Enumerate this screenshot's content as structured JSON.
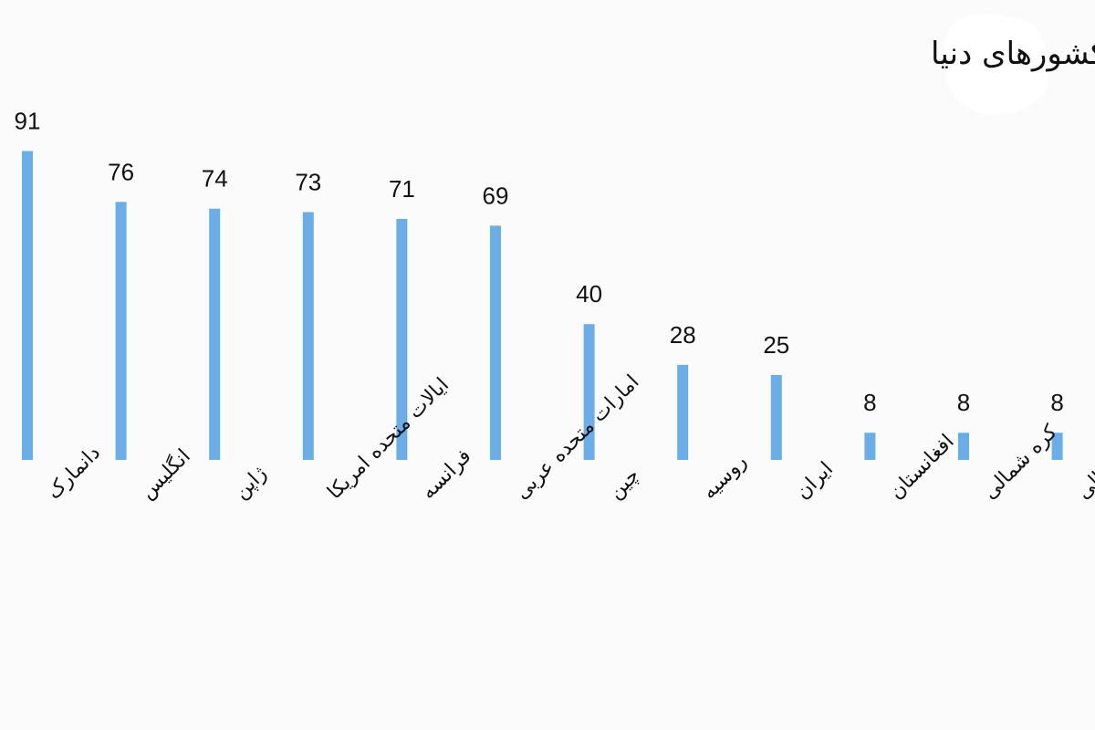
{
  "chart_data": {
    "type": "bar",
    "title": "فساد اقتصادی در کشورهای دنیا",
    "categories": [
      "دانمارک",
      "انگلیس",
      "ژاپن",
      "ایالات متحده امریکا",
      "فرانسه",
      "امارات متحده عربی",
      "چین",
      "روسیه",
      "ایران",
      "افغانستان",
      "کره شمالی",
      "سومالی"
    ],
    "values": [
      91,
      76,
      74,
      73,
      71,
      69,
      40,
      28,
      25,
      8,
      8,
      8
    ],
    "xlabel": "",
    "ylabel": "",
    "ylim": [
      0,
      100
    ],
    "grid": false,
    "legend": "none",
    "bar_color": "#6aaee9"
  }
}
